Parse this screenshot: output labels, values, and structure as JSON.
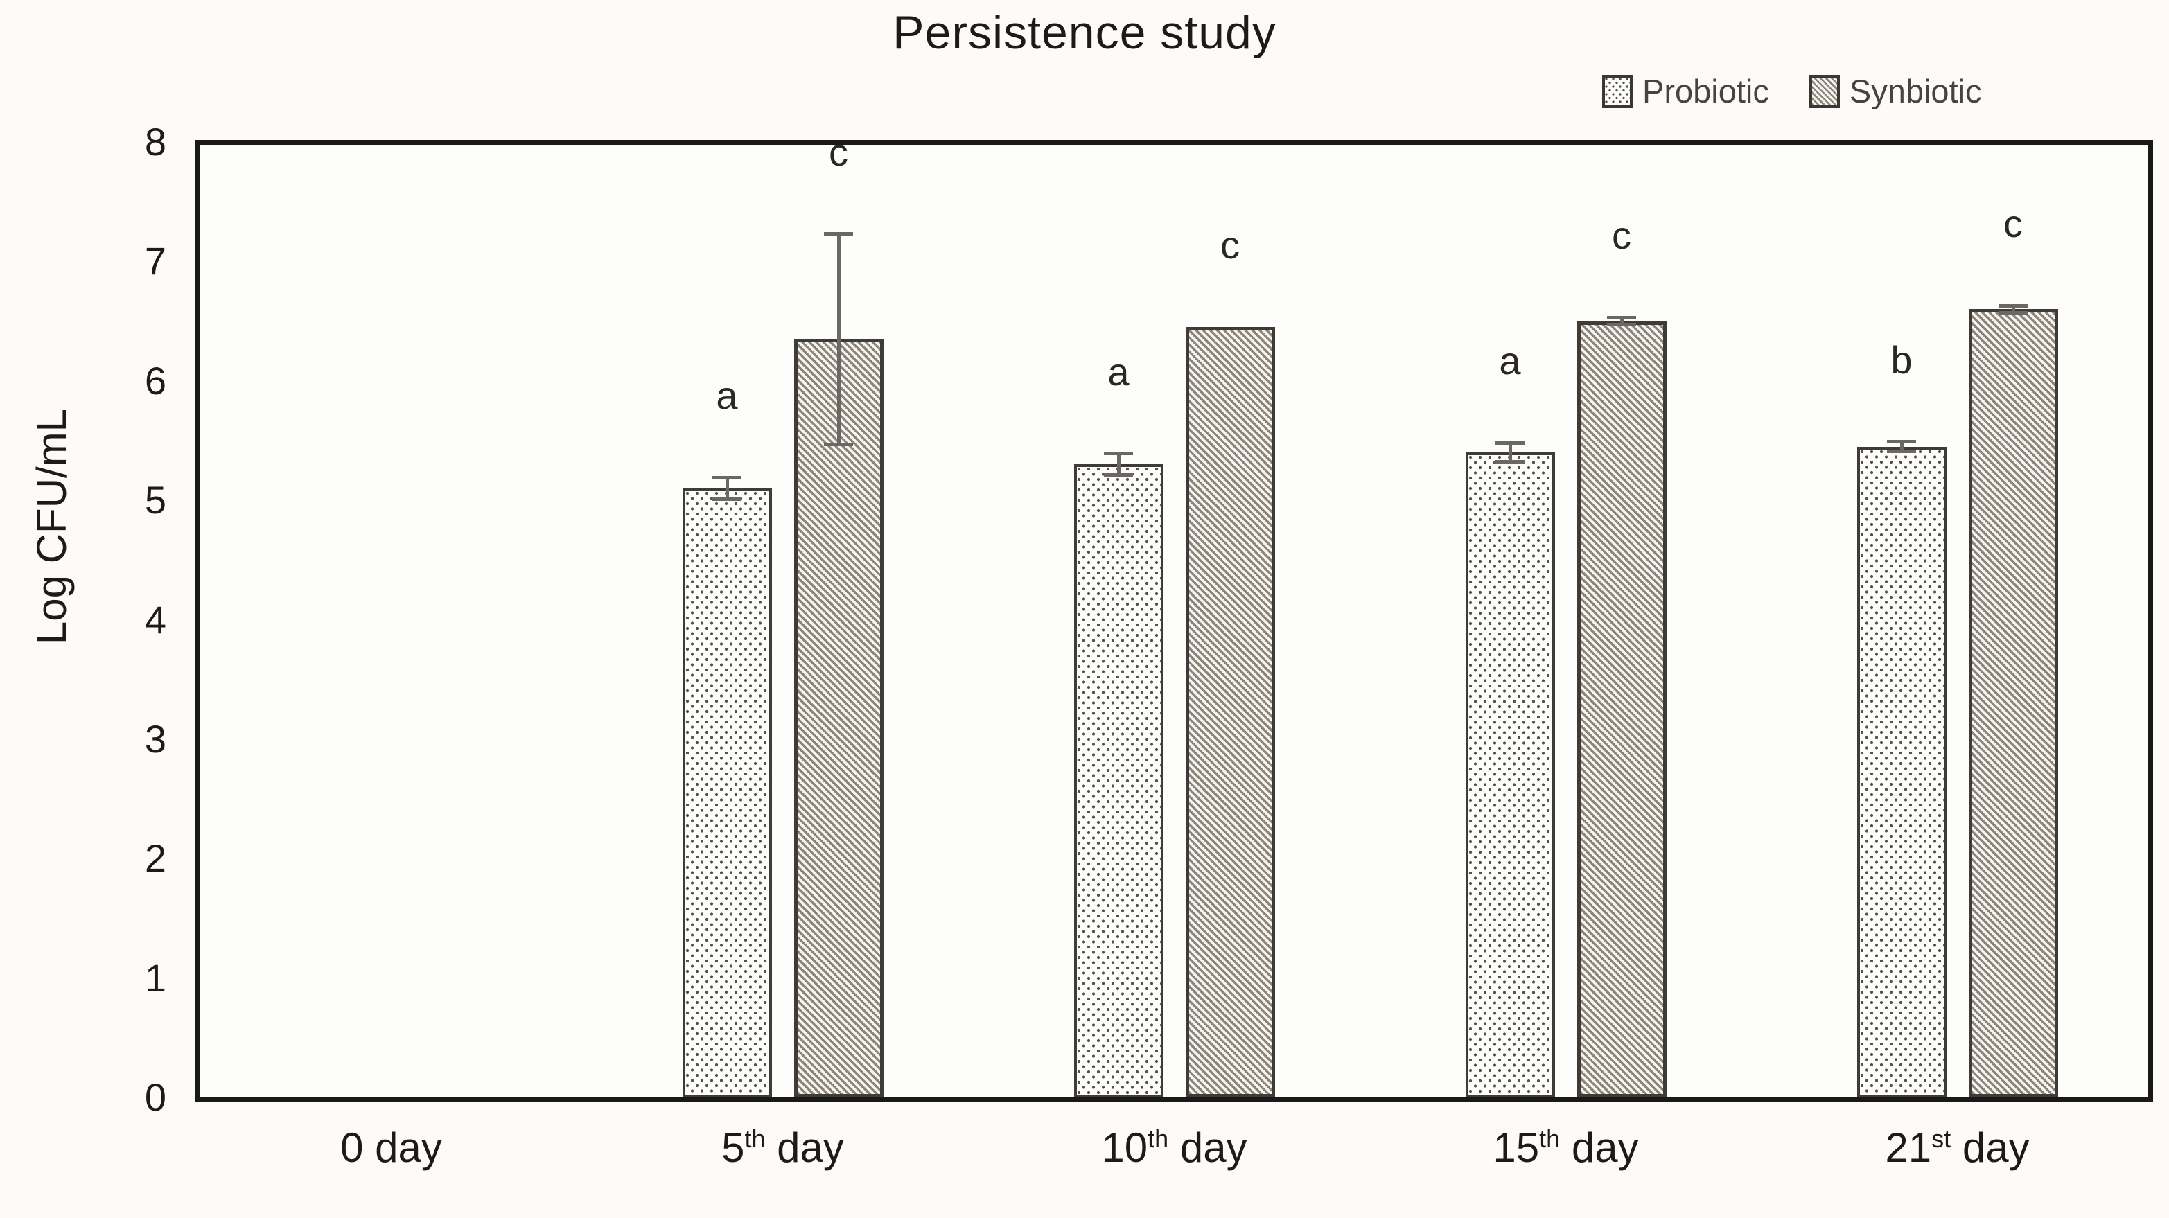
{
  "header": {
    "title": "Persistence study"
  },
  "legend": {
    "items": [
      {
        "label": "Probiotic",
        "swatch": "dots"
      },
      {
        "label": "Synbiotic",
        "swatch": "hatch"
      }
    ]
  },
  "chart_data": {
    "type": "bar",
    "title": "Persistence study",
    "xlabel": "",
    "ylabel": "Log CFU/mL",
    "ylim": [
      0,
      8
    ],
    "yticks": [
      0,
      1,
      2,
      3,
      4,
      5,
      6,
      7,
      8
    ],
    "grid": false,
    "legend_position": "top-right",
    "categories": [
      {
        "base": "0",
        "sup": "",
        "tail": " day",
        "plain": "0 day"
      },
      {
        "base": "5",
        "sup": "th",
        "tail": " day",
        "plain": "5th day"
      },
      {
        "base": "10",
        "sup": "th",
        "tail": " day",
        "plain": "10th day"
      },
      {
        "base": "15",
        "sup": "th",
        "tail": " day",
        "plain": "15th day"
      },
      {
        "base": "21",
        "sup": "st",
        "tail": " day",
        "plain": "21st day"
      }
    ],
    "series": [
      {
        "name": "Probiotic",
        "pattern": "dots",
        "values": [
          null,
          5.1,
          5.3,
          5.4,
          5.45
        ],
        "errors": [
          null,
          0.09,
          0.09,
          0.08,
          0.04
        ],
        "letters": [
          "",
          "a",
          "a",
          "a",
          "b"
        ]
      },
      {
        "name": "Synbiotic",
        "pattern": "hatch",
        "values": [
          null,
          6.35,
          6.45,
          6.5,
          6.6
        ],
        "errors": [
          null,
          0.88,
          null,
          0.03,
          0.03
        ],
        "letters": [
          "",
          "c",
          "c",
          "c",
          "c"
        ]
      }
    ],
    "colors": {
      "dot": "#55504b",
      "hatch": "#8c8379",
      "bar_fill": "#fdfdfc",
      "bar_border": "#3f3b36",
      "error": "#6b6762",
      "text": "#1d1b19",
      "legend_text": "#474440",
      "axis": "#1b1918"
    }
  }
}
